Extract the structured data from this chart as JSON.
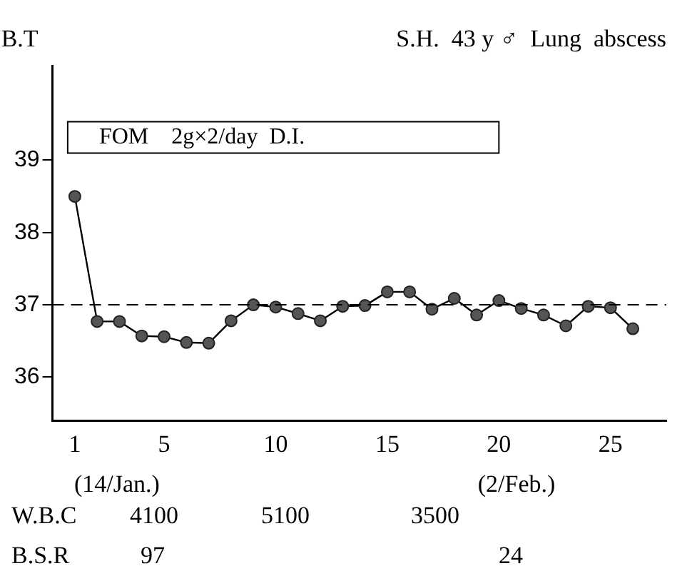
{
  "chart_data": {
    "type": "line",
    "title": "S.H.  43 y ♂  Lung  abscess",
    "ylabel": "B.T",
    "x": [
      1,
      2,
      3,
      4,
      5,
      6,
      7,
      8,
      9,
      10,
      11,
      12,
      13,
      14,
      15,
      16,
      17,
      18,
      19,
      20,
      21,
      22,
      23,
      24,
      25,
      26
    ],
    "series": [
      {
        "color": "#555555",
        "values": [
          38.5,
          36.77,
          36.77,
          36.57,
          36.56,
          36.48,
          36.47,
          36.78,
          37.0,
          36.97,
          36.88,
          36.78,
          36.98,
          36.99,
          37.18,
          37.18,
          36.94,
          37.09,
          36.86,
          37.06,
          36.95,
          36.86,
          36.71,
          36.98,
          36.96,
          36.67
        ]
      }
    ],
    "xlim": [
      0,
      27.5
    ],
    "ylim": [
      35.4,
      40.3
    ],
    "xticks": [
      1,
      5,
      10,
      15,
      20,
      25
    ],
    "yticks": [
      36,
      37,
      38,
      39
    ],
    "ref_lines": [
      {
        "axis": "y",
        "value": 37,
        "line_style": "dashed"
      }
    ],
    "marker": "circle",
    "line_style": "solid",
    "grid": false,
    "legend": false,
    "annotations": [
      "FOM    2g×2/day  D.I.",
      "(14/Jan.)",
      "(2/Feb.)",
      "W.B.C",
      "4100",
      "5100",
      "3500",
      "B.S.R",
      "97",
      "24"
    ]
  }
}
